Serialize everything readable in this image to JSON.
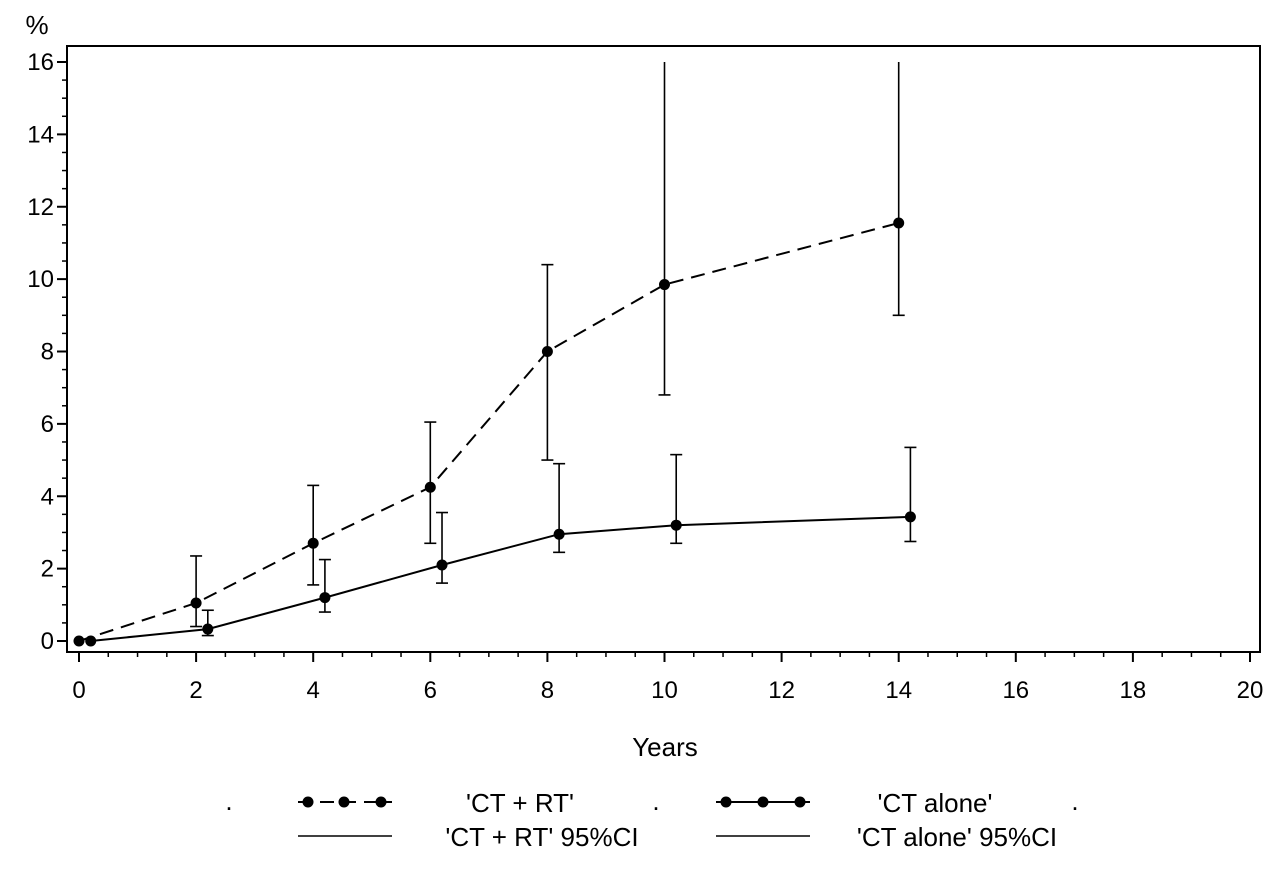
{
  "chart_data": {
    "type": "line",
    "title": "",
    "xlabel": "Years",
    "ylabel": "%",
    "xlim": [
      0,
      20
    ],
    "ylim": [
      0,
      16
    ],
    "x_ticks": [
      0,
      2,
      4,
      6,
      8,
      10,
      12,
      14,
      16,
      18,
      20
    ],
    "y_ticks": [
      0,
      2,
      4,
      6,
      8,
      10,
      12,
      14,
      16
    ],
    "x_tick_labels": [
      "0",
      "2",
      "4",
      "6",
      "8",
      "10",
      "12",
      "14",
      "16",
      "18",
      "20"
    ],
    "y_tick_labels": [
      "0",
      "2",
      "4",
      "6",
      "8",
      "10",
      "12",
      "14",
      "16"
    ],
    "grid": false,
    "series": [
      {
        "name": "'CT + RT'",
        "ci_name": "'CT + RT'  95%CI",
        "line_style": "dashed",
        "x": [
          0,
          2,
          4,
          6,
          8,
          10,
          14
        ],
        "y": [
          0,
          1.05,
          2.7,
          4.25,
          8.0,
          9.85,
          11.55
        ],
        "ci_low": [
          0,
          0.4,
          1.55,
          2.7,
          5.0,
          6.8,
          9.0
        ],
        "ci_high": [
          0,
          2.35,
          4.3,
          6.05,
          10.4,
          16.0,
          16.0
        ]
      },
      {
        "name": "'CT alone'",
        "ci_name": "'CT alone'  95%CI",
        "line_style": "solid",
        "x": [
          0.2,
          2.2,
          4.2,
          6.2,
          8.2,
          10.2,
          14.2
        ],
        "y": [
          0,
          0.33,
          1.2,
          2.1,
          2.95,
          3.2,
          3.43
        ],
        "ci_low": [
          0,
          0.15,
          0.8,
          1.6,
          2.45,
          2.7,
          2.75
        ],
        "ci_high": [
          0,
          0.85,
          2.25,
          3.55,
          4.9,
          5.15,
          5.35
        ]
      }
    ],
    "legend": {
      "position": "bottom",
      "dots": [
        "."
      ],
      "rows": [
        [
          "'CT + RT'",
          "'CT alone'"
        ],
        [
          "'CT + RT'  95%CI",
          "'CT alone'  95%CI"
        ]
      ]
    }
  }
}
